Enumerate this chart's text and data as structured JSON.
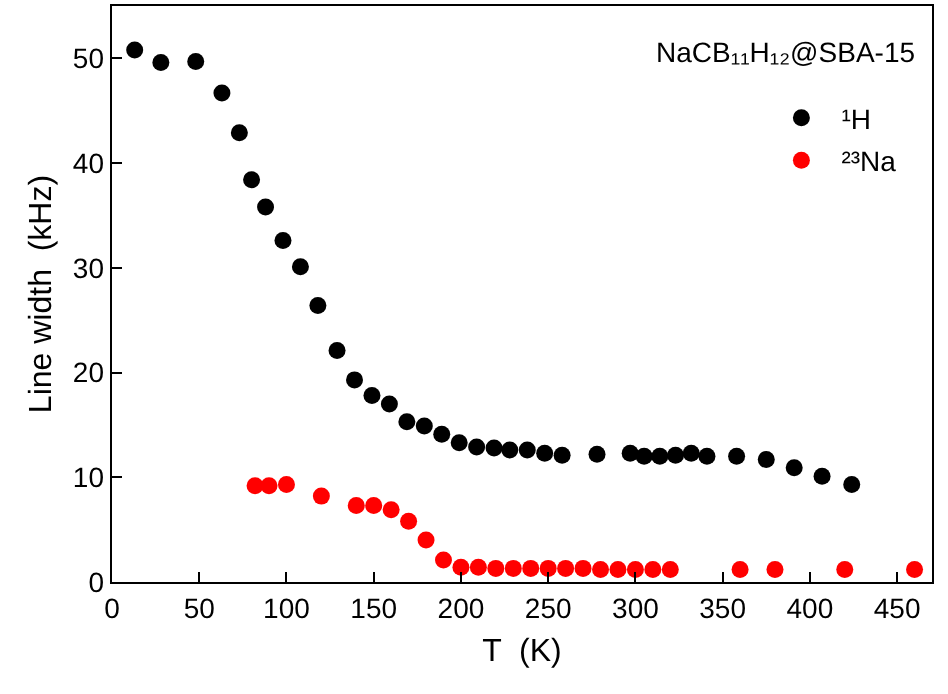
{
  "chart_data": {
    "type": "scatter",
    "xlabel": "T  (K)",
    "ylabel": "Line width  (kHz)",
    "annotations": [
      "NaCB₁₁H₁₂@SBA-15"
    ],
    "xlim": [
      0,
      470
    ],
    "ylim": [
      0,
      55
    ],
    "xticks": [
      0,
      50,
      100,
      150,
      200,
      250,
      300,
      350,
      400,
      450
    ],
    "yticks": [
      0,
      10,
      20,
      30,
      40,
      50
    ],
    "grid": false,
    "legend": "top right",
    "marker": "circle",
    "series": [
      {
        "name": "¹H",
        "color": "#000000",
        "x": [
          13,
          28,
          48,
          63,
          73,
          80,
          88,
          98,
          108,
          118,
          129,
          139,
          149,
          159,
          169,
          179,
          189,
          199,
          209,
          219,
          228,
          238,
          248,
          258,
          278,
          297,
          305,
          314,
          323,
          332,
          341,
          358,
          375,
          391,
          407,
          424
        ],
        "values": [
          50.8,
          49.6,
          49.7,
          46.7,
          42.9,
          38.4,
          35.8,
          32.6,
          30.1,
          26.4,
          22.1,
          19.3,
          17.8,
          17,
          15.3,
          14.9,
          14.1,
          13.3,
          12.9,
          12.8,
          12.6,
          12.6,
          12.3,
          12.1,
          12.2,
          12.3,
          12,
          12,
          12.1,
          12.3,
          12,
          12,
          11.7,
          10.9,
          10.1,
          9.3
        ]
      },
      {
        "name": "²³Na",
        "color": "#ff0000",
        "x": [
          82,
          90,
          100,
          120,
          140,
          150,
          160,
          170,
          180,
          190,
          200,
          210,
          220,
          230,
          240,
          250,
          260,
          270,
          280,
          290,
          300,
          310,
          320,
          360,
          380,
          420,
          460
        ],
        "values": [
          9.2,
          9.2,
          9.3,
          8.2,
          7.3,
          7.3,
          6.9,
          5.8,
          4,
          2.1,
          1.4,
          1.4,
          1.3,
          1.3,
          1.3,
          1.3,
          1.3,
          1.3,
          1.2,
          1.2,
          1.2,
          1.2,
          1.2,
          1.2,
          1.2,
          1.2,
          1.2
        ]
      }
    ]
  }
}
